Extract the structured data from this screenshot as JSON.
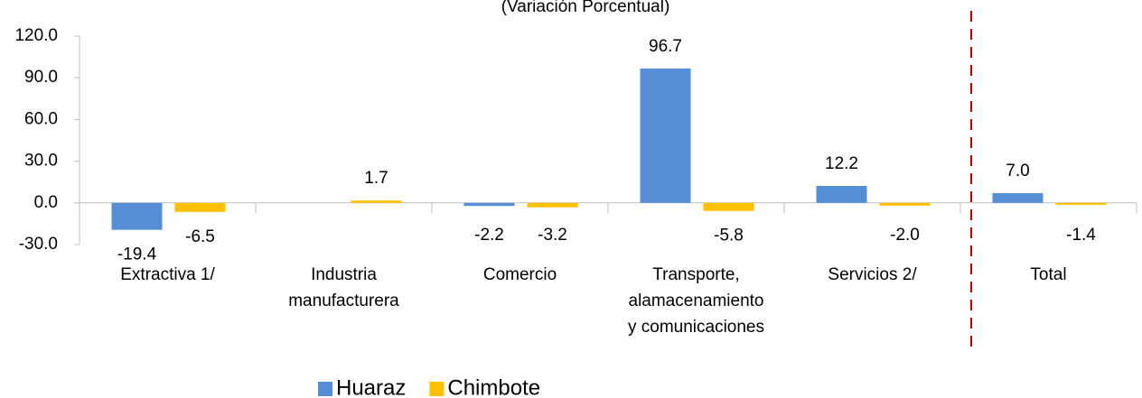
{
  "chart_data": {
    "type": "bar",
    "title": "(Variación Porcentual)",
    "categories": [
      "Extractiva 1/",
      "Industria\nmanufacturera",
      "Comercio",
      "Transporte,\nalamacenamiento\ny comunicaciones",
      "Servicios 2/",
      "Total"
    ],
    "series": [
      {
        "name": "Huaraz",
        "color": "#558ed5",
        "values": [
          -19.4,
          null,
          -2.2,
          96.7,
          12.2,
          7
        ],
        "value_labels": [
          "-19.4",
          null,
          "-2.2",
          "96.7",
          "12.2",
          "7.0"
        ]
      },
      {
        "name": "Chimbote",
        "color": "#ffc000",
        "values": [
          -6.5,
          1.7,
          -3.2,
          -5.8,
          -2,
          -1.4
        ],
        "value_labels": [
          "-6.5",
          "1.7",
          "-3.2",
          "-5.8",
          "-2.0",
          "-1.4"
        ]
      }
    ],
    "ylim": [
      -30,
      120
    ],
    "yticks": [
      {
        "value": -30,
        "label": "-30.0"
      },
      {
        "value": 0,
        "label": "0.0"
      },
      {
        "value": 30,
        "label": "30.0"
      },
      {
        "value": 60,
        "label": "60.0"
      },
      {
        "value": 90,
        "label": "90.0"
      },
      {
        "value": 120,
        "label": "120.0"
      }
    ],
    "legend": "bottom"
  }
}
